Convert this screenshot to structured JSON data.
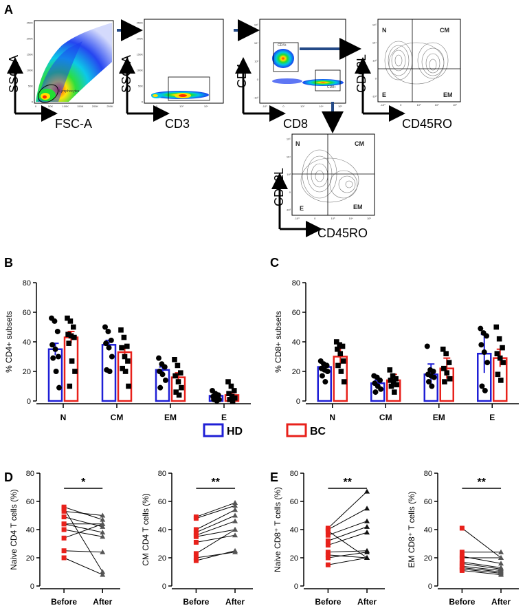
{
  "panels": {
    "A": "A",
    "B": "B",
    "C": "C",
    "D": "D",
    "E": "E"
  },
  "flow": {
    "plot1": {
      "x": "FSC-A",
      "y": "SSC-A",
      "gate": "Lymphocytes",
      "ticks_x": [
        "0",
        "50K",
        "100K",
        "150K",
        "200K",
        "250K"
      ],
      "ticks_y": [
        "0",
        "50K",
        "100K",
        "150K",
        "200K",
        "250K"
      ]
    },
    "plot2": {
      "x": "CD3",
      "y": "SSC-A",
      "ticks_x": [
        "0",
        "10³",
        "10⁴"
      ],
      "ticks_y": [
        "0",
        "50K",
        "100K",
        "150K",
        "200K",
        "250K"
      ]
    },
    "plot3": {
      "x": "CD8",
      "y": "CD4",
      "gate1": "CD4+",
      "gate2": "CD8+",
      "ticks": [
        "-10³",
        "0",
        "10³",
        "10⁴",
        "10⁵"
      ]
    },
    "plot4": {
      "x": "CD45RO",
      "y": "CD62L",
      "q": {
        "N": "N",
        "CM": "CM",
        "E": "E",
        "EM": "EM"
      },
      "ticks": [
        "-10³",
        "0",
        "10³",
        "10⁴",
        "10⁵"
      ]
    },
    "plot5": {
      "x": "CD45RO",
      "y": "CD62L",
      "q": {
        "N": "N",
        "CM": "CM",
        "E": "E",
        "EM": "EM"
      },
      "ticks": [
        "-10³",
        "0",
        "10³",
        "10⁴",
        "10⁵"
      ]
    }
  },
  "legend": {
    "hd": "HD",
    "bc": "BC",
    "hd_color": "#1f1fd6",
    "bc_color": "#e8211b"
  },
  "chart_data": [
    {
      "id": "B",
      "type": "bar",
      "ylabel": "% CD4+ subsets",
      "ylim": [
        0,
        80
      ],
      "yticks": [
        0,
        20,
        40,
        60,
        80
      ],
      "categories": [
        "N",
        "CM",
        "EM",
        "E"
      ],
      "series": [
        {
          "name": "HD",
          "color": "#1f1fd6",
          "means": [
            35,
            38,
            21,
            3.5
          ],
          "err": [
            4,
            3,
            2,
            1
          ],
          "points": [
            [
              56,
              54,
              47,
              38,
              35,
              30,
              29,
              20,
              9
            ],
            [
              50,
              47,
              41,
              39,
              36,
              30,
              21,
              20
            ],
            [
              29,
              25,
              23,
              20,
              18,
              14,
              9
            ],
            [
              7,
              5,
              4,
              3,
              2,
              1,
              1,
              0
            ]
          ]
        },
        {
          "name": "BC",
          "color": "#e8211b",
          "means": [
            43,
            33,
            16,
            4
          ],
          "err": [
            4,
            4,
            3,
            1.5
          ],
          "points": [
            [
              56,
              54,
              50,
              45,
              44,
              43,
              39,
              27,
              20,
              10
            ],
            [
              48,
              43,
              37,
              36,
              30,
              27,
              22,
              20,
              10
            ],
            [
              28,
              24,
              19,
              17,
              13,
              9,
              6,
              4
            ],
            [
              13,
              10,
              7,
              5,
              3,
              2,
              1,
              0
            ]
          ]
        }
      ]
    },
    {
      "id": "C",
      "type": "bar",
      "ylabel": "% CD8+ subsets",
      "ylim": [
        0,
        80
      ],
      "yticks": [
        0,
        20,
        40,
        60,
        80
      ],
      "categories": [
        "N",
        "CM",
        "EM",
        "E"
      ],
      "series": [
        {
          "name": "HD",
          "color": "#1f1fd6",
          "means": [
            23,
            12,
            18,
            32
          ],
          "err": [
            2,
            2,
            7,
            13
          ],
          "points": [
            [
              27,
              25,
              24,
              22,
              21,
              20,
              17,
              13
            ],
            [
              17,
              16,
              14,
              12,
              10,
              8,
              6
            ],
            [
              37,
              21,
              20,
              18,
              17,
              16,
              13,
              10
            ],
            [
              49,
              46,
              44,
              38,
              33,
              26,
              10,
              7
            ]
          ]
        },
        {
          "name": "BC",
          "color": "#e8211b",
          "means": [
            30,
            14,
            22,
            29
          ],
          "err": [
            6,
            4,
            7,
            6
          ],
          "points": [
            [
              40,
              38,
              37,
              35,
              32,
              27,
              24,
              20,
              13
            ],
            [
              21,
              17,
              15,
              14,
              13,
              11,
              10,
              6
            ],
            [
              35,
              32,
              26,
              22,
              19,
              15,
              13
            ],
            [
              50,
              42,
              36,
              32,
              29,
              26,
              18,
              14
            ]
          ]
        }
      ]
    },
    {
      "id": "D1",
      "type": "line",
      "ylabel": "Naive CD4 T cells (%)",
      "ylim": [
        0,
        80
      ],
      "yticks": [
        0,
        20,
        40,
        60,
        80
      ],
      "categories": [
        "Before",
        "After"
      ],
      "sig": "*",
      "pairs": [
        [
          56,
          47
        ],
        [
          53,
          50
        ],
        [
          49,
          42
        ],
        [
          44,
          38
        ],
        [
          44,
          44
        ],
        [
          40,
          35
        ],
        [
          25,
          24
        ],
        [
          20,
          8
        ],
        [
          55,
          10
        ],
        [
          34,
          44
        ]
      ]
    },
    {
      "id": "D2",
      "type": "line",
      "ylabel": "CM CD4 T cells (%)",
      "ylim": [
        0,
        80
      ],
      "yticks": [
        0,
        20,
        40,
        60,
        80
      ],
      "categories": [
        "Before",
        "After"
      ],
      "sig": "**",
      "pairs": [
        [
          49,
          59
        ],
        [
          48,
          57
        ],
        [
          40,
          54
        ],
        [
          38,
          50
        ],
        [
          36,
          46
        ],
        [
          35,
          40
        ],
        [
          23,
          40
        ],
        [
          18,
          25
        ],
        [
          20,
          24
        ],
        [
          31,
          36
        ]
      ]
    },
    {
      "id": "E1",
      "type": "line",
      "ylabel": "Naive CD8⁺ T cells (%)",
      "ylim": [
        0,
        80
      ],
      "yticks": [
        0,
        20,
        40,
        60,
        80
      ],
      "categories": [
        "Before",
        "After"
      ],
      "sig": "**",
      "pairs": [
        [
          41,
          67
        ],
        [
          40,
          55
        ],
        [
          36,
          46
        ],
        [
          32,
          42
        ],
        [
          29,
          38
        ],
        [
          24,
          25
        ],
        [
          22,
          20
        ],
        [
          20,
          24
        ],
        [
          15,
          20
        ],
        [
          39,
          20
        ]
      ]
    },
    {
      "id": "E2",
      "type": "line",
      "ylabel": "EM CD8⁺ T cells (%)",
      "ylim": [
        0,
        80
      ],
      "yticks": [
        0,
        20,
        40,
        60,
        80
      ],
      "categories": [
        "Before",
        "After"
      ],
      "sig": "**",
      "pairs": [
        [
          41,
          20
        ],
        [
          24,
          24
        ],
        [
          21,
          16
        ],
        [
          20,
          20
        ],
        [
          17,
          13
        ],
        [
          16,
          12
        ],
        [
          14,
          11
        ],
        [
          13,
          10
        ],
        [
          12,
          9
        ],
        [
          11,
          8
        ]
      ]
    }
  ]
}
